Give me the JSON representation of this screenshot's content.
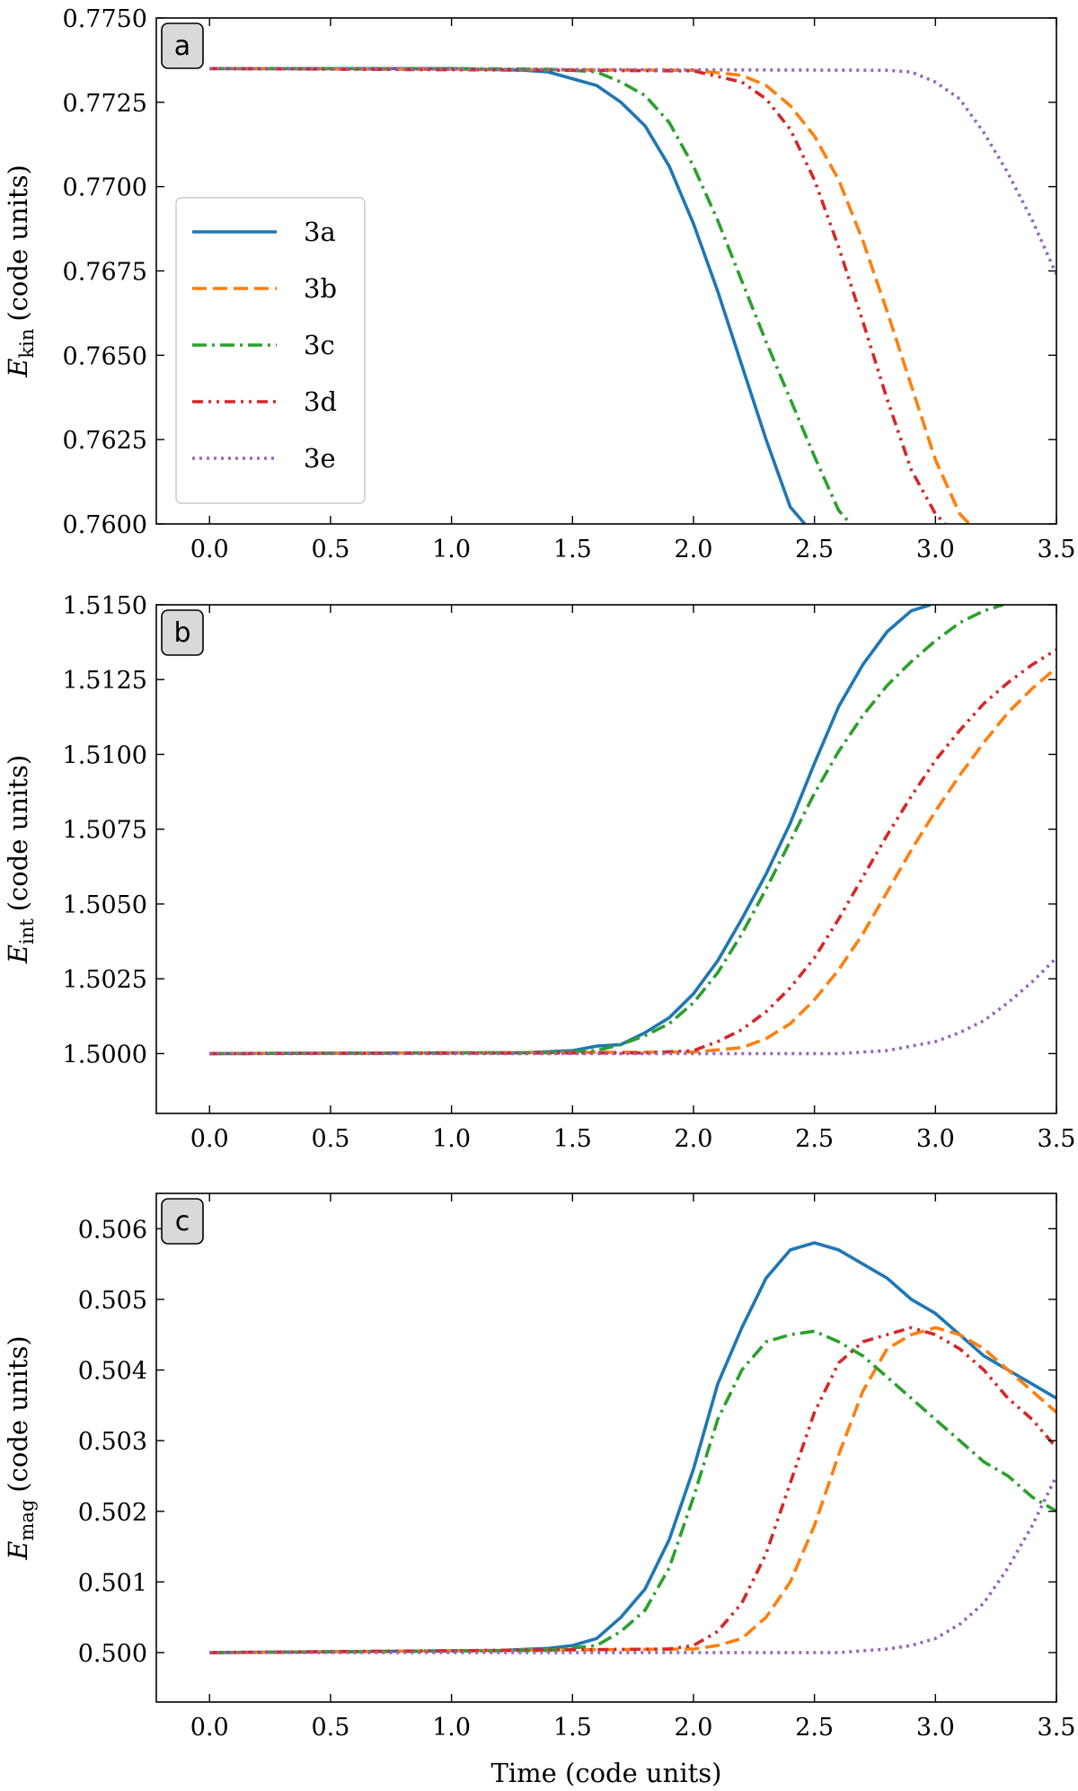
{
  "chart_data": [
    {
      "type": "line",
      "panel": "a",
      "ylabel_main": "E",
      "ylabel_sub": "kin",
      "ylabel_unit": "(code units)",
      "xlabel": "",
      "xlim": [
        -0.22,
        3.5
      ],
      "ylim": [
        0.76,
        0.775
      ],
      "xticks": [
        "0.0",
        "0.5",
        "1.0",
        "1.5",
        "2.0",
        "2.5",
        "3.0",
        "3.5"
      ],
      "yticks": [
        "0.7600",
        "0.7625",
        "0.7650",
        "0.7675",
        "0.7700",
        "0.7725",
        "0.7750"
      ],
      "legend": {
        "position": "center-left",
        "entries": [
          "3a",
          "3b",
          "3c",
          "3d",
          "3e"
        ]
      },
      "series": [
        {
          "name": "3a",
          "x": [
            0,
            1.0,
            1.3,
            1.4,
            1.5,
            1.6,
            1.7,
            1.8,
            1.9,
            2.0,
            2.1,
            2.2,
            2.3,
            2.4,
            2.46
          ],
          "y": [
            0.7735,
            0.7735,
            0.77345,
            0.7734,
            0.7732,
            0.773,
            0.7725,
            0.7718,
            0.7706,
            0.7689,
            0.7669,
            0.7647,
            0.7625,
            0.7605,
            0.76
          ]
        },
        {
          "name": "3b",
          "x": [
            0,
            2.0,
            2.2,
            2.3,
            2.4,
            2.5,
            2.6,
            2.7,
            2.8,
            2.9,
            3.0,
            3.1,
            3.14
          ],
          "y": [
            0.7735,
            0.77345,
            0.7733,
            0.773,
            0.7724,
            0.7715,
            0.7702,
            0.7684,
            0.7663,
            0.7641,
            0.7619,
            0.7603,
            0.76
          ]
        },
        {
          "name": "3c",
          "x": [
            0,
            1.0,
            1.4,
            1.5,
            1.6,
            1.7,
            1.8,
            1.9,
            2.0,
            2.1,
            2.2,
            2.3,
            2.4,
            2.5,
            2.6,
            2.65
          ],
          "y": [
            0.7735,
            0.7735,
            0.77348,
            0.77345,
            0.7734,
            0.7731,
            0.7727,
            0.7719,
            0.7706,
            0.769,
            0.7672,
            0.7654,
            0.7637,
            0.762,
            0.7604,
            0.76
          ]
        },
        {
          "name": "3d",
          "x": [
            0,
            2.0,
            2.2,
            2.3,
            2.4,
            2.5,
            2.6,
            2.7,
            2.8,
            2.9,
            3.0,
            3.04
          ],
          "y": [
            0.7735,
            0.77343,
            0.7731,
            0.7726,
            0.7717,
            0.7702,
            0.7682,
            0.766,
            0.7637,
            0.7616,
            0.7603,
            0.76
          ]
        },
        {
          "name": "3e",
          "x": [
            0,
            2.8,
            2.9,
            3.0,
            3.1,
            3.2,
            3.3,
            3.4,
            3.5
          ],
          "y": [
            0.7735,
            0.77345,
            0.7734,
            0.7731,
            0.7726,
            0.7716,
            0.7704,
            0.769,
            0.7674
          ]
        }
      ]
    },
    {
      "type": "line",
      "panel": "b",
      "ylabel_main": "E",
      "ylabel_sub": "int",
      "ylabel_unit": "(code units)",
      "xlabel": "",
      "xlim": [
        -0.22,
        3.5
      ],
      "ylim": [
        1.498,
        1.515
      ],
      "xticks": [
        "0.0",
        "0.5",
        "1.0",
        "1.5",
        "2.0",
        "2.5",
        "3.0",
        "3.5"
      ],
      "yticks": [
        "1.5000",
        "1.5025",
        "1.5050",
        "1.5075",
        "1.5100",
        "1.5125",
        "1.5150"
      ],
      "series": [
        {
          "name": "3a",
          "x": [
            0,
            1.3,
            1.5,
            1.6,
            1.7,
            1.8,
            1.9,
            2.0,
            2.1,
            2.2,
            2.3,
            2.4,
            2.5,
            2.6,
            2.7,
            2.8,
            2.9,
            2.98
          ],
          "y": [
            1.5,
            1.50003,
            1.5001,
            1.50025,
            1.5003,
            1.5007,
            1.5012,
            1.502,
            1.5031,
            1.5045,
            1.506,
            1.5077,
            1.5097,
            1.5116,
            1.513,
            1.5141,
            1.5148,
            1.515
          ]
        },
        {
          "name": "3b",
          "x": [
            0,
            2.0,
            2.2,
            2.3,
            2.4,
            2.5,
            2.6,
            2.7,
            2.8,
            2.9,
            3.0,
            3.1,
            3.2,
            3.3,
            3.4,
            3.5
          ],
          "y": [
            1.5,
            1.50005,
            1.5002,
            1.5005,
            1.501,
            1.5018,
            1.5028,
            1.504,
            1.5054,
            1.5068,
            1.5081,
            1.5093,
            1.5104,
            1.5114,
            1.5122,
            1.5129
          ]
        },
        {
          "name": "3c",
          "x": [
            0,
            1.4,
            1.6,
            1.7,
            1.8,
            1.9,
            2.0,
            2.1,
            2.2,
            2.3,
            2.4,
            2.5,
            2.6,
            2.7,
            2.8,
            2.9,
            3.0,
            3.1,
            3.2,
            3.28
          ],
          "y": [
            1.5,
            1.50003,
            1.5001,
            1.5003,
            1.5006,
            1.501,
            1.5017,
            1.5027,
            1.504,
            1.5055,
            1.5071,
            1.5087,
            1.5101,
            1.5113,
            1.5123,
            1.5131,
            1.5138,
            1.5144,
            1.5148,
            1.515
          ]
        },
        {
          "name": "3d",
          "x": [
            0,
            1.8,
            2.0,
            2.1,
            2.2,
            2.3,
            2.4,
            2.5,
            2.6,
            2.7,
            2.8,
            2.9,
            3.0,
            3.1,
            3.2,
            3.3,
            3.4,
            3.5
          ],
          "y": [
            1.5,
            1.50002,
            1.5001,
            1.5004,
            1.5008,
            1.5014,
            1.5022,
            1.5032,
            1.5045,
            1.5059,
            1.5073,
            1.5086,
            1.5098,
            1.5108,
            1.5117,
            1.5124,
            1.513,
            1.5135
          ]
        },
        {
          "name": "3e",
          "x": [
            0,
            2.6,
            2.8,
            2.9,
            3.0,
            3.1,
            3.2,
            3.3,
            3.4,
            3.5
          ],
          "y": [
            1.5,
            1.5,
            1.5001,
            1.50025,
            1.5004,
            1.5007,
            1.5011,
            1.5017,
            1.5024,
            1.5032
          ]
        }
      ]
    },
    {
      "type": "line",
      "panel": "c",
      "ylabel_main": "E",
      "ylabel_sub": "mag",
      "ylabel_unit": "(code units)",
      "xlabel": "Time (code units)",
      "xlim": [
        -0.22,
        3.5
      ],
      "ylim": [
        0.4993,
        0.5065
      ],
      "xticks": [
        "0.0",
        "0.5",
        "1.0",
        "1.5",
        "2.0",
        "2.5",
        "3.0",
        "3.5"
      ],
      "yticks": [
        "0.500",
        "0.501",
        "0.502",
        "0.503",
        "0.504",
        "0.505",
        "0.506"
      ],
      "series": [
        {
          "name": "3a",
          "x": [
            0,
            1.2,
            1.4,
            1.5,
            1.6,
            1.7,
            1.8,
            1.9,
            2.0,
            2.1,
            2.2,
            2.3,
            2.4,
            2.5,
            2.6,
            2.7,
            2.8,
            2.9,
            3.0,
            3.1,
            3.2,
            3.3,
            3.4,
            3.5
          ],
          "y": [
            0.5,
            0.50003,
            0.50006,
            0.5001,
            0.5002,
            0.5005,
            0.5009,
            0.5016,
            0.5026,
            0.5038,
            0.5046,
            0.5053,
            0.5057,
            0.5058,
            0.5057,
            0.5055,
            0.5053,
            0.505,
            0.5048,
            0.5045,
            0.5042,
            0.504,
            0.5038,
            0.5036
          ]
        },
        {
          "name": "3b",
          "x": [
            0,
            2.0,
            2.1,
            2.2,
            2.3,
            2.4,
            2.5,
            2.6,
            2.7,
            2.8,
            2.9,
            3.0,
            3.1,
            3.2,
            3.3,
            3.4,
            3.5
          ],
          "y": [
            0.5,
            0.50005,
            0.5001,
            0.5002,
            0.5005,
            0.501,
            0.5018,
            0.5028,
            0.5037,
            0.5043,
            0.5045,
            0.5046,
            0.5045,
            0.5043,
            0.504,
            0.5037,
            0.5034
          ]
        },
        {
          "name": "3c",
          "x": [
            0,
            1.4,
            1.6,
            1.7,
            1.8,
            1.9,
            2.0,
            2.1,
            2.2,
            2.3,
            2.4,
            2.5,
            2.6,
            2.7,
            2.8,
            2.9,
            3.0,
            3.1,
            3.2,
            3.3,
            3.4,
            3.5
          ],
          "y": [
            0.5,
            0.50003,
            0.5001,
            0.5003,
            0.5006,
            0.5012,
            0.5022,
            0.5033,
            0.504,
            0.5044,
            0.5045,
            0.50455,
            0.5044,
            0.5042,
            0.5039,
            0.5036,
            0.5033,
            0.503,
            0.5027,
            0.5025,
            0.5022,
            0.502
          ]
        },
        {
          "name": "3d",
          "x": [
            0,
            1.9,
            2.0,
            2.1,
            2.2,
            2.3,
            2.4,
            2.5,
            2.6,
            2.7,
            2.8,
            2.9,
            3.0,
            3.1,
            3.2,
            3.3,
            3.4,
            3.5
          ],
          "y": [
            0.5,
            0.50005,
            0.5001,
            0.5003,
            0.5007,
            0.5014,
            0.5024,
            0.5034,
            0.5041,
            0.5044,
            0.5045,
            0.5046,
            0.5045,
            0.5043,
            0.504,
            0.5036,
            0.5033,
            0.5029
          ]
        },
        {
          "name": "3e",
          "x": [
            0,
            2.6,
            2.8,
            2.9,
            3.0,
            3.1,
            3.2,
            3.3,
            3.4,
            3.5
          ],
          "y": [
            0.5,
            0.5,
            0.50005,
            0.5001,
            0.5002,
            0.5004,
            0.5007,
            0.5012,
            0.5018,
            0.5025
          ]
        }
      ]
    }
  ],
  "series_styles": [
    {
      "name": "3a",
      "color": "#1f77b4",
      "dash": "solid"
    },
    {
      "name": "3b",
      "color": "#ff7f0e",
      "dash": "dashed"
    },
    {
      "name": "3c",
      "color": "#2ca02c",
      "dash": "dashdot"
    },
    {
      "name": "3d",
      "color": "#d62728",
      "dash": "dashdotdot"
    },
    {
      "name": "3e",
      "color": "#9467bd",
      "dash": "dotted"
    }
  ]
}
